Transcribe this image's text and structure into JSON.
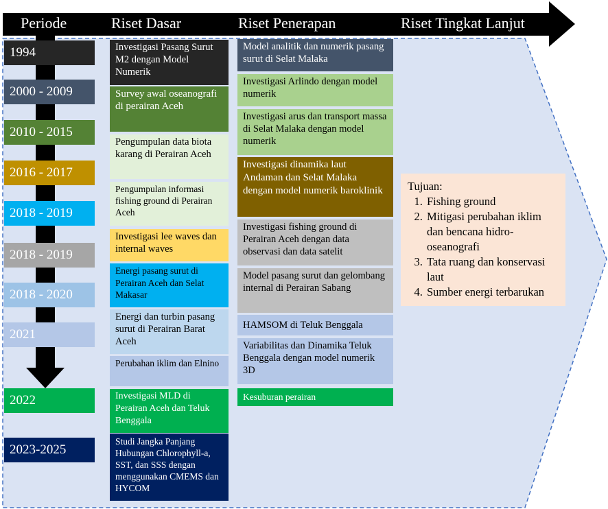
{
  "headers": {
    "periode": "Periode",
    "riset_dasar": "Riset Dasar",
    "riset_penerapan": "Riset Penerapan",
    "riset_lanjut": "Riset Tingkat Lanjut"
  },
  "periods": [
    {
      "label": "1994",
      "color": "#262626",
      "text_color": "#ffffff"
    },
    {
      "label": "2000 - 2009",
      "color": "#44546a",
      "text_color": "#ffffff"
    },
    {
      "label": "2010 - 2015",
      "color": "#548235",
      "text_color": "#ffffff"
    },
    {
      "label": "2016 - 2017",
      "color": "#bf9000",
      "text_color": "#ffffff"
    },
    {
      "label": "2018 - 2019",
      "color": "#00b0f0",
      "text_color": "#ffffff"
    },
    {
      "label": "2018 - 2019",
      "color": "#a6a6a6",
      "text_color": "#ffffff"
    },
    {
      "label": "2018 - 2020",
      "color": "#9dc3e6",
      "text_color": "#ffffff"
    },
    {
      "label": "2021",
      "color": "#b4c7e7",
      "text_color": "#ffffff"
    },
    {
      "label": "2022",
      "color": "#00b050",
      "text_color": "#ffffff"
    },
    {
      "label": "2023-2025",
      "color": "#002060",
      "text_color": "#ffffff"
    }
  ],
  "riset_dasar": [
    {
      "text": "Investigasi Pasang Surut M2 dengan Model Numerik",
      "color": "#262626",
      "text_color": "#ffffff"
    },
    {
      "text": "Survey awal oseanografi di perairan Aceh",
      "color": "#548235",
      "text_color": "#ffffff"
    },
    {
      "text": "Pengumpulan data biota karang di Perairan Aceh",
      "color": "#e2f0d9",
      "text_color": "#000000"
    },
    {
      "text": "Pengumpulan informasi fishing ground di Perairan Aceh",
      "color": "#e2f0d9",
      "text_color": "#000000"
    },
    {
      "text": "Investigasi lee waves dan internal waves",
      "color": "#ffd966",
      "text_color": "#000000"
    },
    {
      "text": "Energi pasang surut di Perairan Aceh dan Selat Makasar",
      "color": "#00b0f0",
      "text_color": "#000000"
    },
    {
      "text": "Energi dan turbin pasang surut di Perairan Barat Aceh",
      "color": "#bdd7ee",
      "text_color": "#000000"
    },
    {
      "text": "Perubahan iklim dan Elnino",
      "color": "#b4c7e7",
      "text_color": "#000000"
    },
    {
      "text": "Investigasi MLD di Perairan Aceh dan Teluk Benggala",
      "color": "#00b050",
      "text_color": "#ffffff"
    },
    {
      "text": "Studi Jangka Panjang Hubungan Chlorophyll-a, SST, dan SSS dengan menggunakan CMEMS dan HYCOM",
      "color": "#002060",
      "text_color": "#ffffff"
    }
  ],
  "riset_penerapan": [
    {
      "text": "Model analitik dan numerik pasang surut di Selat Malaka",
      "color": "#44546a",
      "text_color": "#ffffff"
    },
    {
      "text": "Investigasi Arlindo dengan model numerik",
      "color": "#a9d18e",
      "text_color": "#000000"
    },
    {
      "text": "Investigasi arus dan transport massa di Selat Malaka dengan model numerik",
      "color": "#a9d18e",
      "text_color": "#000000"
    },
    {
      "text": "Investigasi dinamika laut Andaman dan Selat Malaka dengan model numerik baroklinik",
      "color": "#7f6000",
      "text_color": "#ffffff"
    },
    {
      "text": "Investigasi fishing ground di Perairan Aceh dengan data observasi dan data satelit",
      "color": "#bfbfbf",
      "text_color": "#000000"
    },
    {
      "text": "Model pasang surut dan gelombang internal di Perairan Sabang",
      "color": "#bfbfbf",
      "text_color": "#000000"
    },
    {
      "text": "HAMSOM di Teluk Benggala",
      "color": "#b4c7e7",
      "text_color": "#000000"
    },
    {
      "text": "Variabilitas dan Dinamika Teluk Benggala dengan model numerik 3D",
      "color": "#b4c7e7",
      "text_color": "#000000"
    },
    {
      "text": "Kesuburan perairan",
      "color": "#00b050",
      "text_color": "#ffffff"
    }
  ],
  "tujuan": {
    "title": "Tujuan:",
    "items": [
      "Fishing ground",
      "Mitigasi perubahan iklim dan bencana hidro-oseanografi",
      "Tata ruang dan konservasi laut",
      "Sumber energi terbarukan"
    ]
  },
  "colors": {
    "background_region": "#dae3f3",
    "dashed_border": "#4472c4",
    "header_bar": "#000000",
    "timeline_arrow": "#000000"
  }
}
